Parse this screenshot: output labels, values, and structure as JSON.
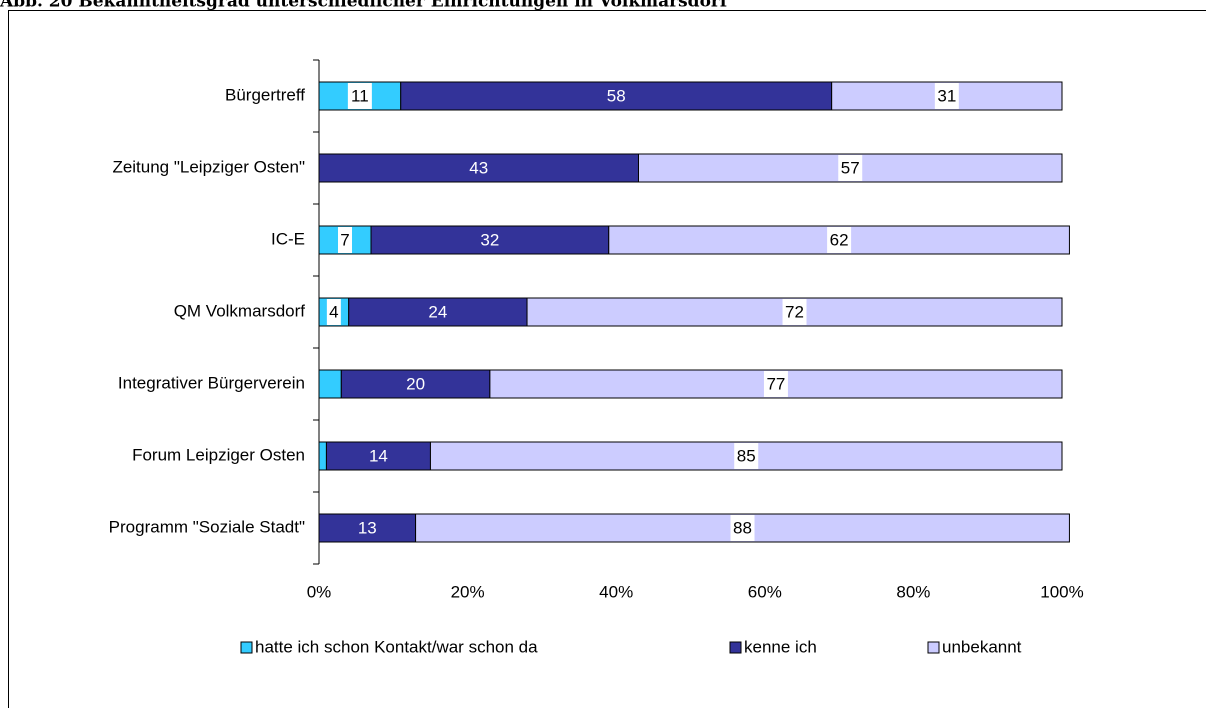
{
  "chart_data": {
    "type": "stacked_barh",
    "title": "Abb. 20 Bekanntheitsgrad unterschiedlicher Einrichtungen in Volkmarsdorf",
    "categories": [
      "Bürgertreff",
      "Zeitung \"Leipziger Osten\"",
      "IC-E",
      "QM Volkmarsdorf",
      "Integrativer Bürgerverein",
      "Forum Leipziger Osten",
      "Programm \"Soziale Stadt\""
    ],
    "series": [
      {
        "name": "hatte ich schon Kontakt/war schon da",
        "color": "#33ccff",
        "values": [
          11,
          0,
          7,
          4,
          3,
          1,
          0
        ],
        "value_labels": [
          "11",
          null,
          "7",
          "4",
          null,
          null,
          null
        ]
      },
      {
        "name": "kenne ich",
        "color": "#333399",
        "values": [
          58,
          43,
          32,
          24,
          20,
          14,
          13
        ]
      },
      {
        "name": "unbekannt",
        "color": "#ccccff",
        "values": [
          31,
          57,
          62,
          72,
          77,
          85,
          88
        ]
      }
    ],
    "xlim": [
      0,
      100
    ],
    "xticks": [
      {
        "value": 0,
        "label": "0%"
      },
      {
        "value": 20,
        "label": "20%"
      },
      {
        "value": 40,
        "label": "40%"
      },
      {
        "value": 60,
        "label": "60%"
      },
      {
        "value": 80,
        "label": "80%"
      },
      {
        "value": 100,
        "label": "100%"
      }
    ],
    "legend": "bottom"
  }
}
